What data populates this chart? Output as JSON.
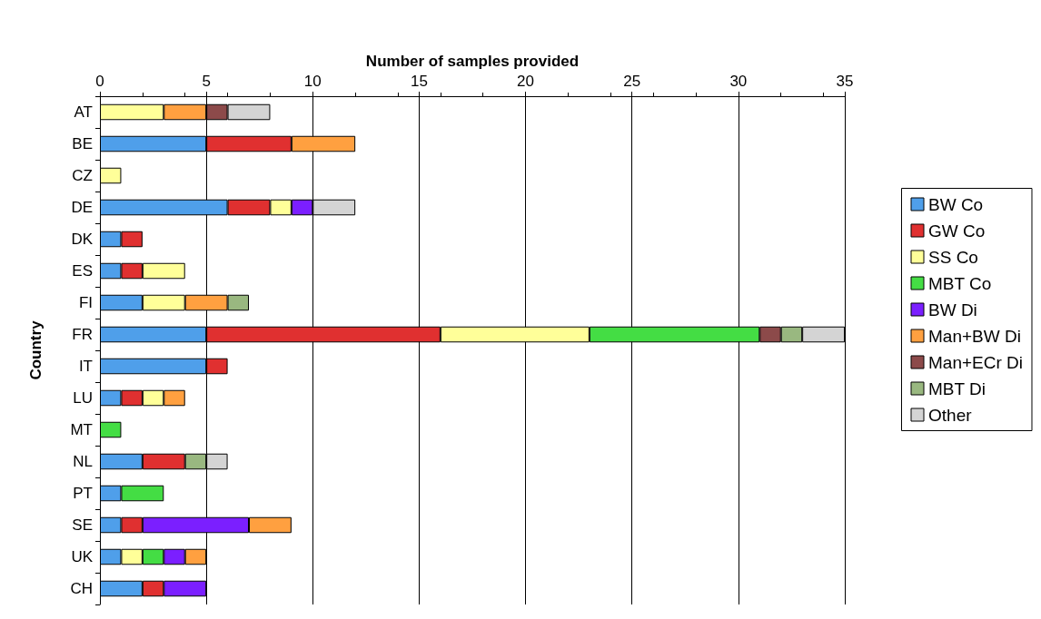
{
  "chart_data": {
    "type": "bar",
    "orientation": "horizontal",
    "stacked": true,
    "xlabel": "Number of samples provided",
    "ylabel": "Country",
    "categories": [
      "AT",
      "BE",
      "CZ",
      "DE",
      "DK",
      "ES",
      "FI",
      "FR",
      "IT",
      "LU",
      "MT",
      "NL",
      "PT",
      "SE",
      "UK",
      "CH"
    ],
    "xlim": [
      0,
      35
    ],
    "xticks": [
      0,
      5,
      10,
      15,
      20,
      25,
      30,
      35
    ],
    "grid": "x",
    "legend": "right",
    "series": [
      {
        "name": "BW Co",
        "color": "#4f9fea",
        "values": [
          null,
          5,
          null,
          6,
          1,
          1,
          2,
          5,
          5,
          1,
          null,
          2,
          1,
          1,
          1,
          2
        ]
      },
      {
        "name": "GW Co",
        "color": "#e03030",
        "values": [
          null,
          4,
          null,
          2,
          1,
          1,
          null,
          11,
          1,
          1,
          null,
          2,
          null,
          1,
          null,
          1
        ]
      },
      {
        "name": "SS Co",
        "color": "#ffff99",
        "values": [
          3,
          null,
          1,
          1,
          null,
          2,
          2,
          7,
          null,
          1,
          null,
          null,
          null,
          null,
          1,
          null
        ]
      },
      {
        "name": "MBT Co",
        "color": "#44dd44",
        "values": [
          null,
          null,
          null,
          null,
          null,
          null,
          null,
          8,
          null,
          null,
          1,
          null,
          2,
          null,
          1,
          null
        ]
      },
      {
        "name": "BW Di",
        "color": "#7b1fff",
        "values": [
          null,
          null,
          null,
          1,
          null,
          null,
          null,
          null,
          null,
          null,
          null,
          null,
          null,
          5,
          1,
          2
        ]
      },
      {
        "name": "Man+BW Di",
        "color": "#ffa040",
        "values": [
          2,
          3,
          null,
          null,
          null,
          null,
          2,
          null,
          null,
          1,
          null,
          null,
          null,
          2,
          1,
          null
        ]
      },
      {
        "name": "Man+ECr Di",
        "color": "#8c4a4a",
        "values": [
          1,
          null,
          null,
          null,
          null,
          null,
          null,
          1,
          null,
          null,
          null,
          null,
          null,
          null,
          null,
          null
        ]
      },
      {
        "name": "MBT Di",
        "color": "#99b880",
        "values": [
          null,
          null,
          null,
          null,
          null,
          null,
          1,
          1,
          null,
          null,
          null,
          1,
          null,
          null,
          null,
          null
        ]
      },
      {
        "name": "Other",
        "color": "#d4d4d4",
        "values": [
          2,
          null,
          null,
          2,
          null,
          null,
          null,
          2,
          null,
          null,
          null,
          1,
          null,
          null,
          null,
          null
        ]
      }
    ]
  }
}
